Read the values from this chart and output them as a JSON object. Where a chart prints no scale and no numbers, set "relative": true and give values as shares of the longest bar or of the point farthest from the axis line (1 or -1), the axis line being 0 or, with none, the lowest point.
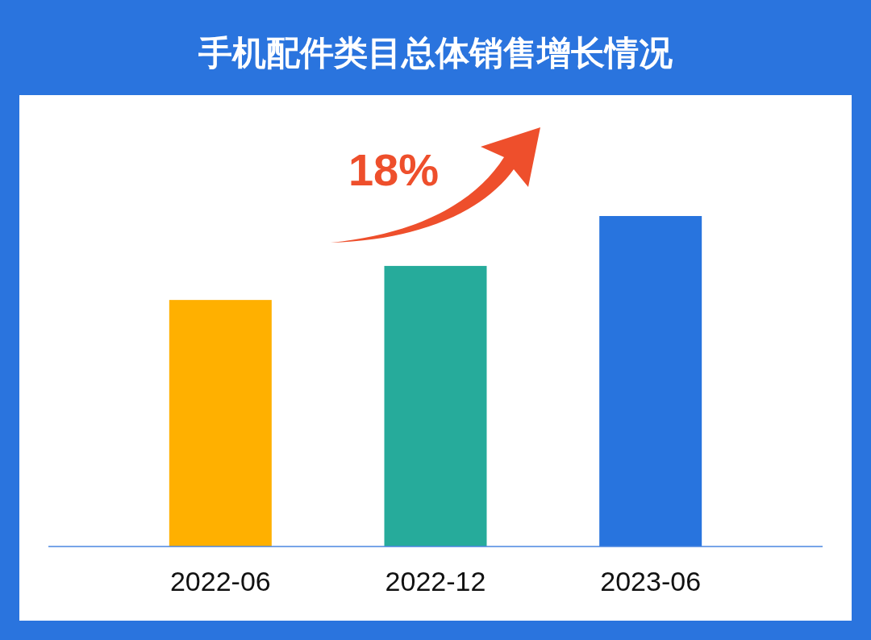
{
  "chart_data": {
    "type": "bar",
    "title": "手机配件类目总体销售增长情况",
    "relative": true,
    "categories": [
      "2022-06",
      "2022-12",
      "2023-06"
    ],
    "values": [
      0.746,
      0.849,
      1
    ],
    "colors": [
      "#ffb000",
      "#26ab9b",
      "#2874de"
    ],
    "annotations": [
      "18%"
    ]
  }
}
